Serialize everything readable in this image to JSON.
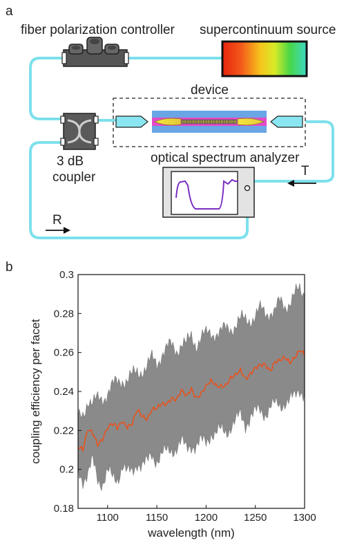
{
  "panel_a": {
    "panel_label": "a",
    "labels": {
      "fpc": "fiber polarization controller",
      "source": "supercontinuum source",
      "device": "device",
      "coupler_1": "3 dB",
      "coupler_2": "coupler",
      "osa": "optical spectrum analyzer",
      "T": "T",
      "R": "R"
    },
    "colors": {
      "fiber": "#7de0ec",
      "fiber_end": "#8ae6f0",
      "waveguide_cladding": "#6aa6e6",
      "waveguide_core": "#e64ac8",
      "taper": "#f2e53a",
      "component_gray": "#666666",
      "component_dark": "#2e2e2e",
      "screen_trace": "#7a2cc2"
    }
  },
  "panel_b": {
    "panel_label": "b"
  },
  "chart_data": {
    "type": "line",
    "xlabel": "wavelength (nm)",
    "ylabel": "coupling efficiency per facet",
    "xlim": [
      1070,
      1300
    ],
    "ylim": [
      0.18,
      0.3
    ],
    "xticks": [
      1100,
      1150,
      1200,
      1250,
      1300
    ],
    "yticks": [
      0.18,
      0.2,
      0.22,
      0.24,
      0.26,
      0.28,
      0.3
    ],
    "grid": false,
    "series": [
      {
        "color": "#e8521c",
        "x": [
          1070,
          1075,
          1080,
          1085,
          1090,
          1095,
          1100,
          1105,
          1110,
          1115,
          1120,
          1125,
          1130,
          1135,
          1140,
          1145,
          1150,
          1155,
          1160,
          1165,
          1170,
          1175,
          1180,
          1185,
          1190,
          1195,
          1200,
          1205,
          1210,
          1215,
          1220,
          1225,
          1230,
          1235,
          1240,
          1245,
          1250,
          1255,
          1260,
          1265,
          1270,
          1275,
          1280,
          1285,
          1290,
          1295,
          1300
        ],
        "y": [
          0.213,
          0.21,
          0.219,
          0.218,
          0.214,
          0.217,
          0.221,
          0.222,
          0.221,
          0.226,
          0.223,
          0.223,
          0.229,
          0.227,
          0.227,
          0.232,
          0.231,
          0.232,
          0.233,
          0.238,
          0.237,
          0.24,
          0.236,
          0.241,
          0.238,
          0.24,
          0.242,
          0.244,
          0.243,
          0.244,
          0.244,
          0.246,
          0.247,
          0.251,
          0.248,
          0.25,
          0.251,
          0.252,
          0.254,
          0.252,
          0.256,
          0.255,
          0.256,
          0.255,
          0.259,
          0.262,
          0.258
        ]
      }
    ],
    "band": {
      "color": "#8a8a8a",
      "lower": [
        0.2,
        0.196,
        0.197,
        0.203,
        0.196,
        0.194,
        0.198,
        0.195,
        0.196,
        0.203,
        0.197,
        0.198,
        0.205,
        0.202,
        0.202,
        0.208,
        0.206,
        0.207,
        0.208,
        0.211,
        0.212,
        0.213,
        0.21,
        0.214,
        0.212,
        0.213,
        0.214,
        0.22,
        0.218,
        0.219,
        0.22,
        0.223,
        0.224,
        0.227,
        0.224,
        0.228,
        0.228,
        0.23,
        0.23,
        0.232,
        0.232,
        0.233,
        0.236,
        0.235,
        0.236,
        0.242,
        0.24
      ],
      "upper": [
        0.225,
        0.228,
        0.237,
        0.233,
        0.235,
        0.237,
        0.24,
        0.242,
        0.244,
        0.247,
        0.246,
        0.247,
        0.25,
        0.252,
        0.252,
        0.256,
        0.255,
        0.26,
        0.261,
        0.263,
        0.262,
        0.265,
        0.263,
        0.268,
        0.265,
        0.268,
        0.268,
        0.27,
        0.271,
        0.27,
        0.271,
        0.273,
        0.275,
        0.276,
        0.276,
        0.278,
        0.279,
        0.281,
        0.28,
        0.282,
        0.281,
        0.285,
        0.284,
        0.287,
        0.289,
        0.291,
        0.29
      ]
    }
  }
}
